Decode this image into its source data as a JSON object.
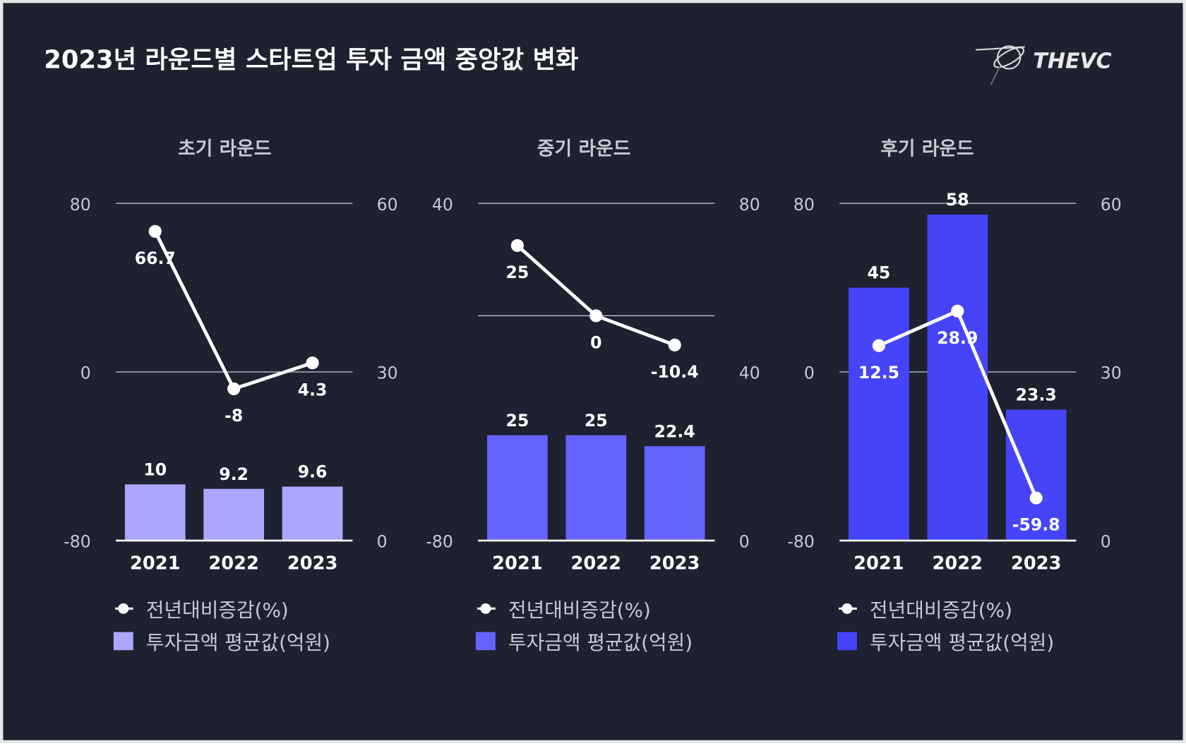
{
  "title": "2023년 라운드별 스타트업 투자 금액 중앙값 변화",
  "logo_text": "THEVC",
  "colors": {
    "background": "#1d2130",
    "grid": "#c9ccd6",
    "line": "#ffffff"
  },
  "chart_data": [
    {
      "type": "bar+line",
      "title": "초기 라운드",
      "categories": [
        "2021",
        "2022",
        "2023"
      ],
      "bar_series": {
        "name": "투자금액 평균값(억원)",
        "values": [
          10,
          9.2,
          9.6
        ],
        "color": "#a9a8fd",
        "axis": "right",
        "labels": [
          "10",
          "9.2",
          "9.6"
        ]
      },
      "line_series": {
        "name": "전년대비증감(%)",
        "values": [
          66.7,
          -8,
          4.3
        ],
        "axis": "left",
        "labels": [
          "66.7",
          "-8",
          "4.3"
        ]
      },
      "left_axis": {
        "range": [
          -80,
          80
        ],
        "ticks": [
          "80",
          "0",
          "-80"
        ]
      },
      "right_axis": {
        "range": [
          0,
          60
        ],
        "ticks": [
          "60",
          "30",
          "0"
        ]
      },
      "grid_lines_left": [
        80,
        0
      ]
    },
    {
      "type": "bar+line",
      "title": "중기 라운드",
      "categories": [
        "2021",
        "2022",
        "2023"
      ],
      "bar_series": {
        "name": "투자금액 평균값(억원)",
        "values": [
          25,
          25,
          22.4
        ],
        "color": "#6563fd",
        "axis": "right",
        "labels": [
          "25",
          "25",
          "22.4"
        ]
      },
      "line_series": {
        "name": "전년대비증감(%)",
        "values": [
          25,
          0,
          -10.4
        ],
        "axis": "left",
        "labels": [
          "25",
          "0",
          "-10.4"
        ]
      },
      "left_axis": {
        "range": [
          -80,
          40
        ],
        "ticks": [
          "40",
          "-80"
        ]
      },
      "right_axis": {
        "range": [
          0,
          80
        ],
        "ticks": [
          "80",
          "40",
          "0"
        ]
      },
      "grid_lines_left": [
        40,
        0
      ]
    },
    {
      "type": "bar+line",
      "title": "후기 라운드",
      "categories": [
        "2021",
        "2022",
        "2023"
      ],
      "bar_series": {
        "name": "투자금액 평균값(억원)",
        "values": [
          45,
          58,
          23.3
        ],
        "color": "#4644f9",
        "axis": "right",
        "labels": [
          "45",
          "58",
          "23.3"
        ]
      },
      "line_series": {
        "name": "전년대비증감(%)",
        "values": [
          12.5,
          28.9,
          -59.8
        ],
        "axis": "left",
        "labels": [
          "12.5",
          "28.9",
          "-59.8"
        ]
      },
      "left_axis": {
        "range": [
          -80,
          80
        ],
        "ticks": [
          "80",
          "0",
          "-80"
        ]
      },
      "right_axis": {
        "range": [
          0,
          60
        ],
        "ticks": [
          "60",
          "30",
          "0"
        ]
      },
      "grid_lines_left": [
        80,
        0
      ]
    }
  ]
}
